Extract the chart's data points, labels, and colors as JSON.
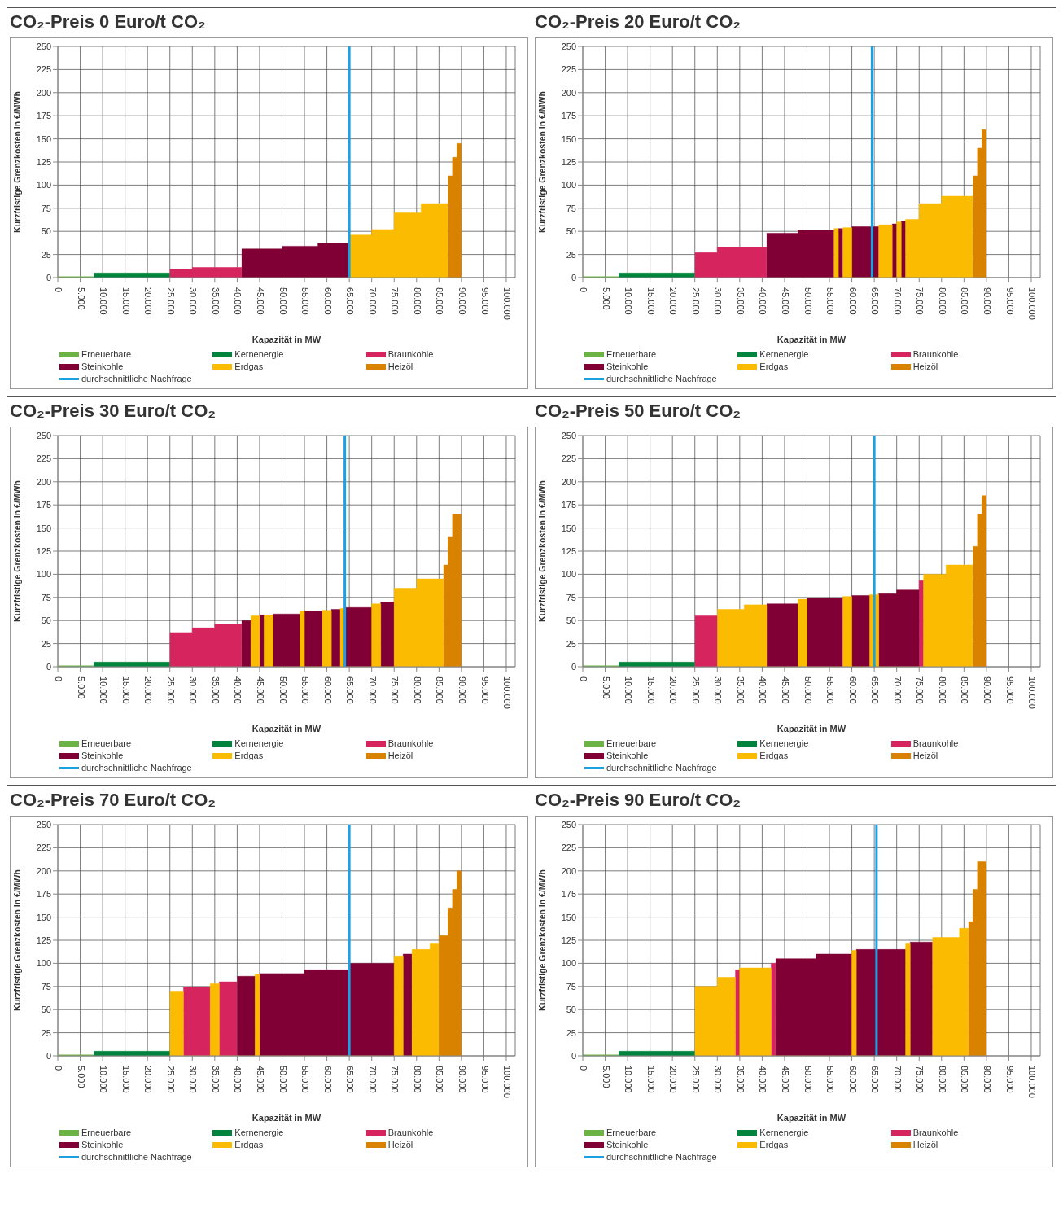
{
  "chart_data": [
    {
      "type": "area",
      "title": "CO₂-Preis 0 Euro/t CO₂",
      "xlabel": "Kapazität in MW",
      "ylabel": "Kurzfristige Grenzkosten  in €/MWh",
      "xlim": [
        0,
        102000
      ],
      "ylim": [
        0,
        250
      ],
      "yticks": [
        0,
        25,
        50,
        75,
        100,
        125,
        150,
        175,
        200,
        225,
        250
      ],
      "xticks": [
        {
          "value": 0,
          "label": "0"
        },
        {
          "value": 5000,
          "label": "5.000"
        },
        {
          "value": 10000,
          "label": "10.000"
        },
        {
          "value": 15000,
          "label": "15.000"
        },
        {
          "value": 20000,
          "label": "20.000"
        },
        {
          "value": 25000,
          "label": "25.000"
        },
        {
          "value": 30000,
          "label": "30.000"
        },
        {
          "value": 35000,
          "label": "35.000"
        },
        {
          "value": 40000,
          "label": "40.000"
        },
        {
          "value": 45000,
          "label": "45.000"
        },
        {
          "value": 50000,
          "label": "50.000"
        },
        {
          "value": 55000,
          "label": "55.000"
        },
        {
          "value": 60000,
          "label": "60.000"
        },
        {
          "value": 65000,
          "label": "65.000"
        },
        {
          "value": 70000,
          "label": "70.000"
        },
        {
          "value": 75000,
          "label": "75.000"
        },
        {
          "value": 80000,
          "label": "80.000"
        },
        {
          "value": 85000,
          "label": "85.000"
        },
        {
          "value": 90000,
          "label": "90.000"
        },
        {
          "value": 95000,
          "label": "95.000"
        },
        {
          "value": 100000,
          "label": "100.000"
        }
      ],
      "grid": true,
      "legend": "bottom",
      "ref_lines": [
        {
          "axis": "x",
          "value": 65000,
          "label": "durchschnittliche Nachfrage",
          "color": "#1ba1e2"
        }
      ],
      "series": [
        {
          "name": "Erneuerbare",
          "color": "#6ab344",
          "x": [
            0,
            8000
          ],
          "values": [
            1,
            1
          ]
        },
        {
          "name": "Kernenergie",
          "color": "#00843d",
          "x": [
            8000,
            25000
          ],
          "values": [
            5,
            5
          ]
        },
        {
          "name": "Braunkohle",
          "color": "#d6245f",
          "x": [
            25000,
            30000,
            30000,
            41000
          ],
          "values": [
            9,
            9,
            11,
            11
          ]
        },
        {
          "name": "Steinkohle",
          "color": "#800035",
          "x": [
            41000,
            50000,
            50000,
            58000,
            58000,
            65000
          ],
          "values": [
            31,
            31,
            34,
            34,
            37,
            37
          ]
        },
        {
          "name": "Erdgas",
          "color": "#fbbb00",
          "x": [
            65000,
            70000,
            70000,
            75000,
            75000,
            81000,
            81000,
            87000
          ],
          "values": [
            46,
            46,
            52,
            52,
            70,
            70,
            80,
            80
          ]
        },
        {
          "name": "Heizöl",
          "color": "#d98200",
          "x": [
            87000,
            88000,
            88000,
            89000,
            89000,
            90000
          ],
          "values": [
            110,
            110,
            130,
            130,
            145,
            145
          ]
        }
      ]
    },
    {
      "type": "area",
      "title": "CO₂-Preis 20 Euro/t CO₂",
      "xlabel": "Kapazität in MW",
      "ylabel": "Kurzfristige Grenzkosten  in €/MWh",
      "xlim": [
        0,
        102000
      ],
      "ylim": [
        0,
        250
      ],
      "yticks": [
        0,
        25,
        50,
        75,
        100,
        125,
        150,
        175,
        200,
        225,
        250
      ],
      "xticks": [
        {
          "value": 0,
          "label": "0"
        },
        {
          "value": 5000,
          "label": "5.000"
        },
        {
          "value": 10000,
          "label": "10.000"
        },
        {
          "value": 15000,
          "label": "15.000"
        },
        {
          "value": 20000,
          "label": "20.000"
        },
        {
          "value": 25000,
          "label": "25.000"
        },
        {
          "value": 30000,
          "label": "30.000"
        },
        {
          "value": 35000,
          "label": "35.000"
        },
        {
          "value": 40000,
          "label": "40.000"
        },
        {
          "value": 45000,
          "label": "45.000"
        },
        {
          "value": 50000,
          "label": "50.000"
        },
        {
          "value": 55000,
          "label": "55.000"
        },
        {
          "value": 60000,
          "label": "60.000"
        },
        {
          "value": 65000,
          "label": "65.000"
        },
        {
          "value": 70000,
          "label": "70.000"
        },
        {
          "value": 75000,
          "label": "75.000"
        },
        {
          "value": 80000,
          "label": "80.000"
        },
        {
          "value": 85000,
          "label": "85.000"
        },
        {
          "value": 90000,
          "label": "90.000"
        },
        {
          "value": 95000,
          "label": "95.000"
        },
        {
          "value": 100000,
          "label": "100.000"
        }
      ],
      "grid": true,
      "legend": "bottom",
      "ref_lines": [
        {
          "axis": "x",
          "value": 64500,
          "label": "durchschnittliche Nachfrage",
          "color": "#1ba1e2"
        }
      ],
      "series": [
        {
          "name": "Erneuerbare",
          "color": "#6ab344",
          "x": [
            0,
            8000
          ],
          "values": [
            1,
            1
          ]
        },
        {
          "name": "Kernenergie",
          "color": "#00843d",
          "x": [
            8000,
            25000
          ],
          "values": [
            5,
            5
          ]
        },
        {
          "name": "Braunkohle",
          "color": "#d6245f",
          "x": [
            25000,
            30000,
            30000,
            41000
          ],
          "values": [
            27,
            27,
            33,
            33
          ]
        },
        {
          "name": "Steinkohle",
          "color": "#800035",
          "x": [
            41000,
            48000,
            48000,
            56000,
            56000,
            57000,
            57000,
            58000,
            58000,
            60000,
            60000,
            66000,
            66000,
            69000,
            69000,
            70000,
            70000,
            71000,
            71000,
            72000
          ],
          "values": [
            48,
            48,
            51,
            51,
            0,
            0,
            53,
            53,
            0,
            0,
            55,
            55,
            0,
            0,
            58,
            58,
            0,
            0,
            61,
            61
          ]
        },
        {
          "name": "Erdgas",
          "color": "#fbbb00",
          "x": [
            56000,
            57000,
            57000,
            58000,
            58000,
            60000,
            60000,
            66000,
            66000,
            69000,
            69000,
            70000,
            70000,
            71000,
            71000,
            72000,
            72000,
            75000,
            75000,
            80000,
            80000,
            87000
          ],
          "values": [
            53,
            53,
            0,
            0,
            54,
            54,
            0,
            0,
            57,
            57,
            0,
            0,
            60,
            60,
            0,
            0,
            63,
            63,
            80,
            80,
            88,
            88
          ]
        },
        {
          "name": "Heizöl",
          "color": "#d98200",
          "x": [
            87000,
            88000,
            88000,
            89000,
            89000,
            90000
          ],
          "values": [
            110,
            110,
            140,
            140,
            160,
            160
          ]
        }
      ]
    },
    {
      "type": "area",
      "title": "CO₂-Preis 30 Euro/t CO₂",
      "xlabel": "Kapazität in MW",
      "ylabel": "Kurzfristige Grenzkosten  in €/MWh",
      "xlim": [
        0,
        102000
      ],
      "ylim": [
        0,
        250
      ],
      "yticks": [
        0,
        25,
        50,
        75,
        100,
        125,
        150,
        175,
        200,
        225,
        250
      ],
      "xticks": [
        {
          "value": 0,
          "label": "0"
        },
        {
          "value": 5000,
          "label": "5.000"
        },
        {
          "value": 10000,
          "label": "10.000"
        },
        {
          "value": 15000,
          "label": "15.000"
        },
        {
          "value": 20000,
          "label": "20.000"
        },
        {
          "value": 25000,
          "label": "25.000"
        },
        {
          "value": 30000,
          "label": "30.000"
        },
        {
          "value": 35000,
          "label": "35.000"
        },
        {
          "value": 40000,
          "label": "40.000"
        },
        {
          "value": 45000,
          "label": "45.000"
        },
        {
          "value": 50000,
          "label": "50.000"
        },
        {
          "value": 55000,
          "label": "55.000"
        },
        {
          "value": 60000,
          "label": "60.000"
        },
        {
          "value": 65000,
          "label": "65.000"
        },
        {
          "value": 70000,
          "label": "70.000"
        },
        {
          "value": 75000,
          "label": "75.000"
        },
        {
          "value": 80000,
          "label": "80.000"
        },
        {
          "value": 85000,
          "label": "85.000"
        },
        {
          "value": 90000,
          "label": "90.000"
        },
        {
          "value": 95000,
          "label": "95.000"
        },
        {
          "value": 100000,
          "label": "100.000"
        }
      ],
      "grid": true,
      "legend": "bottom",
      "ref_lines": [
        {
          "axis": "x",
          "value": 64000,
          "label": "durchschnittliche Nachfrage",
          "color": "#1ba1e2"
        }
      ],
      "series": [
        {
          "name": "Erneuerbare",
          "color": "#6ab344",
          "x": [
            0,
            8000
          ],
          "values": [
            1,
            1
          ]
        },
        {
          "name": "Kernenergie",
          "color": "#00843d",
          "x": [
            8000,
            25000
          ],
          "values": [
            5,
            5
          ]
        },
        {
          "name": "Braunkohle",
          "color": "#d6245f",
          "x": [
            25000,
            30000,
            30000,
            35000,
            35000,
            41000
          ],
          "values": [
            37,
            37,
            42,
            42,
            46,
            46
          ]
        },
        {
          "name": "Steinkohle",
          "color": "#800035",
          "x": [
            41000,
            43000,
            43000,
            45000,
            45000,
            46000,
            46000,
            48000,
            48000,
            54000,
            54000,
            55000,
            55000,
            59000,
            59000,
            61000,
            61000,
            63000,
            63000,
            64000,
            64000,
            70000,
            70000,
            72000,
            72000,
            75000
          ],
          "values": [
            50,
            50,
            0,
            0,
            56,
            56,
            0,
            0,
            57,
            57,
            0,
            0,
            60,
            60,
            0,
            0,
            62,
            62,
            0,
            0,
            64,
            64,
            0,
            0,
            70,
            70
          ]
        },
        {
          "name": "Erdgas",
          "color": "#fbbb00",
          "x": [
            43000,
            45000,
            45000,
            46000,
            46000,
            48000,
            48000,
            54000,
            54000,
            55000,
            55000,
            59000,
            59000,
            61000,
            61000,
            63000,
            63000,
            64000,
            64000,
            70000,
            70000,
            72000,
            72000,
            75000,
            75000,
            80000,
            80000,
            86000
          ],
          "values": [
            55,
            55,
            0,
            0,
            56,
            56,
            0,
            0,
            60,
            60,
            0,
            0,
            61,
            61,
            0,
            0,
            63,
            63,
            0,
            0,
            68,
            68,
            0,
            0,
            85,
            85,
            95,
            95
          ]
        },
        {
          "name": "Heizöl",
          "color": "#d98200",
          "x": [
            86000,
            87000,
            87000,
            88000,
            88000,
            90000
          ],
          "values": [
            110,
            110,
            140,
            140,
            165,
            165
          ]
        }
      ]
    },
    {
      "type": "area",
      "title": "CO₂-Preis 50 Euro/t CO₂",
      "xlabel": "Kapazität in MW",
      "ylabel": "Kurzfristige Grenzkosten  in €/MWh",
      "xlim": [
        0,
        102000
      ],
      "ylim": [
        0,
        250
      ],
      "yticks": [
        0,
        25,
        50,
        75,
        100,
        125,
        150,
        175,
        200,
        225,
        250
      ],
      "xticks": [
        {
          "value": 0,
          "label": "0"
        },
        {
          "value": 5000,
          "label": "5.000"
        },
        {
          "value": 10000,
          "label": "10.000"
        },
        {
          "value": 15000,
          "label": "15.000"
        },
        {
          "value": 20000,
          "label": "20.000"
        },
        {
          "value": 25000,
          "label": "25.000"
        },
        {
          "value": 30000,
          "label": "30.000"
        },
        {
          "value": 35000,
          "label": "35.000"
        },
        {
          "value": 40000,
          "label": "40.000"
        },
        {
          "value": 45000,
          "label": "45.000"
        },
        {
          "value": 50000,
          "label": "50.000"
        },
        {
          "value": 55000,
          "label": "55.000"
        },
        {
          "value": 60000,
          "label": "60.000"
        },
        {
          "value": 65000,
          "label": "65.000"
        },
        {
          "value": 70000,
          "label": "70.000"
        },
        {
          "value": 75000,
          "label": "75.000"
        },
        {
          "value": 80000,
          "label": "80.000"
        },
        {
          "value": 85000,
          "label": "85.000"
        },
        {
          "value": 90000,
          "label": "90.000"
        },
        {
          "value": 95000,
          "label": "95.000"
        },
        {
          "value": 100000,
          "label": "100.000"
        }
      ],
      "grid": true,
      "legend": "bottom",
      "ref_lines": [
        {
          "axis": "x",
          "value": 65000,
          "label": "durchschnittliche Nachfrage",
          "color": "#1ba1e2"
        }
      ],
      "series": [
        {
          "name": "Erneuerbare",
          "color": "#6ab344",
          "x": [
            0,
            8000
          ],
          "values": [
            1,
            1
          ]
        },
        {
          "name": "Kernenergie",
          "color": "#00843d",
          "x": [
            8000,
            25000
          ],
          "values": [
            5,
            5
          ]
        },
        {
          "name": "Braunkohle",
          "color": "#d6245f",
          "x": [
            25000,
            30000,
            30000,
            75000,
            75000,
            76000
          ],
          "values": [
            55,
            55,
            0,
            0,
            93,
            93
          ]
        },
        {
          "name": "Steinkohle",
          "color": "#800035",
          "x": [
            41000,
            48000,
            48000,
            50000,
            50000,
            58000,
            58000,
            60000,
            60000,
            64000,
            64000,
            66000,
            66000,
            70000,
            70000,
            75000
          ],
          "values": [
            68,
            68,
            0,
            0,
            74,
            74,
            0,
            0,
            77,
            77,
            0,
            0,
            79,
            79,
            83,
            83
          ]
        },
        {
          "name": "Erdgas",
          "color": "#fbbb00",
          "x": [
            30000,
            36000,
            36000,
            41000,
            41000,
            48000,
            48000,
            50000,
            50000,
            58000,
            58000,
            60000,
            60000,
            64000,
            64000,
            66000,
            66000,
            76000,
            76000,
            81000,
            81000,
            87000
          ],
          "values": [
            62,
            62,
            67,
            67,
            0,
            0,
            73,
            73,
            0,
            0,
            76,
            76,
            0,
            0,
            78,
            78,
            0,
            0,
            100,
            100,
            110,
            110
          ]
        },
        {
          "name": "Heizöl",
          "color": "#d98200",
          "x": [
            87000,
            88000,
            88000,
            89000,
            89000,
            90000
          ],
          "values": [
            130,
            130,
            165,
            165,
            185,
            185
          ]
        }
      ]
    },
    {
      "type": "area",
      "title": "CO₂-Preis 70 Euro/t CO₂",
      "xlabel": "Kapazität in MW",
      "ylabel": "Kurzfristige Grenzkosten  in €/MWh",
      "xlim": [
        0,
        102000
      ],
      "ylim": [
        0,
        250
      ],
      "yticks": [
        0,
        25,
        50,
        75,
        100,
        125,
        150,
        175,
        200,
        225,
        250
      ],
      "xticks": [
        {
          "value": 0,
          "label": "0"
        },
        {
          "value": 5000,
          "label": "5.000"
        },
        {
          "value": 10000,
          "label": "10.000"
        },
        {
          "value": 15000,
          "label": "15.000"
        },
        {
          "value": 20000,
          "label": "20.000"
        },
        {
          "value": 25000,
          "label": "25.000"
        },
        {
          "value": 30000,
          "label": "30.000"
        },
        {
          "value": 35000,
          "label": "35.000"
        },
        {
          "value": 40000,
          "label": "40.000"
        },
        {
          "value": 45000,
          "label": "45.000"
        },
        {
          "value": 50000,
          "label": "50.000"
        },
        {
          "value": 55000,
          "label": "55.000"
        },
        {
          "value": 60000,
          "label": "60.000"
        },
        {
          "value": 65000,
          "label": "65.000"
        },
        {
          "value": 70000,
          "label": "70.000"
        },
        {
          "value": 75000,
          "label": "75.000"
        },
        {
          "value": 80000,
          "label": "80.000"
        },
        {
          "value": 85000,
          "label": "85.000"
        },
        {
          "value": 90000,
          "label": "90.000"
        },
        {
          "value": 95000,
          "label": "95.000"
        },
        {
          "value": 100000,
          "label": "100.000"
        }
      ],
      "grid": true,
      "legend": "bottom",
      "ref_lines": [
        {
          "axis": "x",
          "value": 65000,
          "label": "durchschnittliche Nachfrage",
          "color": "#1ba1e2"
        }
      ],
      "series": [
        {
          "name": "Erneuerbare",
          "color": "#6ab344",
          "x": [
            0,
            8000
          ],
          "values": [
            1,
            1
          ]
        },
        {
          "name": "Kernenergie",
          "color": "#00843d",
          "x": [
            8000,
            25000
          ],
          "values": [
            5,
            5
          ]
        },
        {
          "name": "Braunkohle",
          "color": "#d6245f",
          "x": [
            28000,
            34000,
            34000,
            36000,
            36000,
            40000
          ],
          "values": [
            74,
            74,
            0,
            0,
            80,
            80
          ]
        },
        {
          "name": "Steinkohle",
          "color": "#800035",
          "x": [
            40000,
            44000,
            44000,
            45000,
            45000,
            55000,
            55000,
            65000,
            65000,
            75000,
            75000,
            77000,
            77000,
            79000
          ],
          "values": [
            86,
            86,
            0,
            0,
            89,
            89,
            93,
            93,
            100,
            100,
            0,
            0,
            110,
            110
          ]
        },
        {
          "name": "Erdgas",
          "color": "#fbbb00",
          "x": [
            25000,
            28000,
            28000,
            34000,
            34000,
            36000,
            36000,
            44000,
            44000,
            45000,
            45000,
            75000,
            75000,
            77000,
            77000,
            79000,
            79000,
            83000,
            83000,
            85000
          ],
          "values": [
            70,
            70,
            0,
            0,
            78,
            78,
            0,
            0,
            88,
            88,
            0,
            0,
            108,
            108,
            0,
            0,
            115,
            115,
            122,
            122
          ]
        },
        {
          "name": "Heizöl",
          "color": "#d98200",
          "x": [
            85000,
            87000,
            87000,
            88000,
            88000,
            89000,
            89000,
            90000
          ],
          "values": [
            130,
            130,
            160,
            160,
            180,
            180,
            200,
            200
          ]
        }
      ]
    },
    {
      "type": "area",
      "title": "CO₂-Preis 90 Euro/t CO₂",
      "xlabel": "Kapazität in MW",
      "ylabel": "Kurzfristige Grenzkosten  in €/MWh",
      "xlim": [
        0,
        102000
      ],
      "ylim": [
        0,
        250
      ],
      "yticks": [
        0,
        25,
        50,
        75,
        100,
        125,
        150,
        175,
        200,
        225,
        250
      ],
      "xticks": [
        {
          "value": 0,
          "label": "0"
        },
        {
          "value": 5000,
          "label": "5.000"
        },
        {
          "value": 10000,
          "label": "10.000"
        },
        {
          "value": 15000,
          "label": "15.000"
        },
        {
          "value": 20000,
          "label": "20.000"
        },
        {
          "value": 25000,
          "label": "25.000"
        },
        {
          "value": 30000,
          "label": "30.000"
        },
        {
          "value": 35000,
          "label": "35.000"
        },
        {
          "value": 40000,
          "label": "40.000"
        },
        {
          "value": 45000,
          "label": "45.000"
        },
        {
          "value": 50000,
          "label": "50.000"
        },
        {
          "value": 55000,
          "label": "55.000"
        },
        {
          "value": 60000,
          "label": "60.000"
        },
        {
          "value": 65000,
          "label": "65.000"
        },
        {
          "value": 70000,
          "label": "70.000"
        },
        {
          "value": 75000,
          "label": "75.000"
        },
        {
          "value": 80000,
          "label": "80.000"
        },
        {
          "value": 85000,
          "label": "85.000"
        },
        {
          "value": 90000,
          "label": "90.000"
        },
        {
          "value": 95000,
          "label": "95.000"
        },
        {
          "value": 100000,
          "label": "100.000"
        }
      ],
      "grid": true,
      "legend": "bottom",
      "ref_lines": [
        {
          "axis": "x",
          "value": 65500,
          "label": "durchschnittliche Nachfrage",
          "color": "#1ba1e2"
        }
      ],
      "series": [
        {
          "name": "Erneuerbare",
          "color": "#6ab344",
          "x": [
            0,
            8000
          ],
          "values": [
            1,
            1
          ]
        },
        {
          "name": "Kernenergie",
          "color": "#00843d",
          "x": [
            8000,
            25000
          ],
          "values": [
            5,
            5
          ]
        },
        {
          "name": "Braunkohle",
          "color": "#d6245f",
          "x": [
            34000,
            35000,
            35000,
            42000,
            42000,
            43000
          ],
          "values": [
            93,
            93,
            0,
            0,
            100,
            100
          ]
        },
        {
          "name": "Steinkohle",
          "color": "#800035",
          "x": [
            43000,
            52000,
            52000,
            60000,
            60000,
            61000,
            61000,
            72000,
            72000,
            73000,
            73000,
            78000
          ],
          "values": [
            105,
            105,
            110,
            110,
            0,
            0,
            115,
            115,
            0,
            0,
            123,
            123
          ]
        },
        {
          "name": "Erdgas",
          "color": "#fbbb00",
          "x": [
            25000,
            30000,
            30000,
            34000,
            34000,
            35000,
            35000,
            42000,
            42000,
            60000,
            60000,
            61000,
            61000,
            72000,
            72000,
            73000,
            73000,
            78000,
            78000,
            84000,
            84000,
            86000
          ],
          "values": [
            75,
            75,
            85,
            85,
            0,
            0,
            95,
            95,
            0,
            0,
            114,
            114,
            0,
            0,
            122,
            122,
            0,
            0,
            128,
            128,
            138,
            138
          ]
        },
        {
          "name": "Heizöl",
          "color": "#d98200",
          "x": [
            86000,
            87000,
            87000,
            88000,
            88000,
            90000
          ],
          "values": [
            145,
            145,
            180,
            180,
            210,
            210
          ]
        }
      ]
    }
  ]
}
